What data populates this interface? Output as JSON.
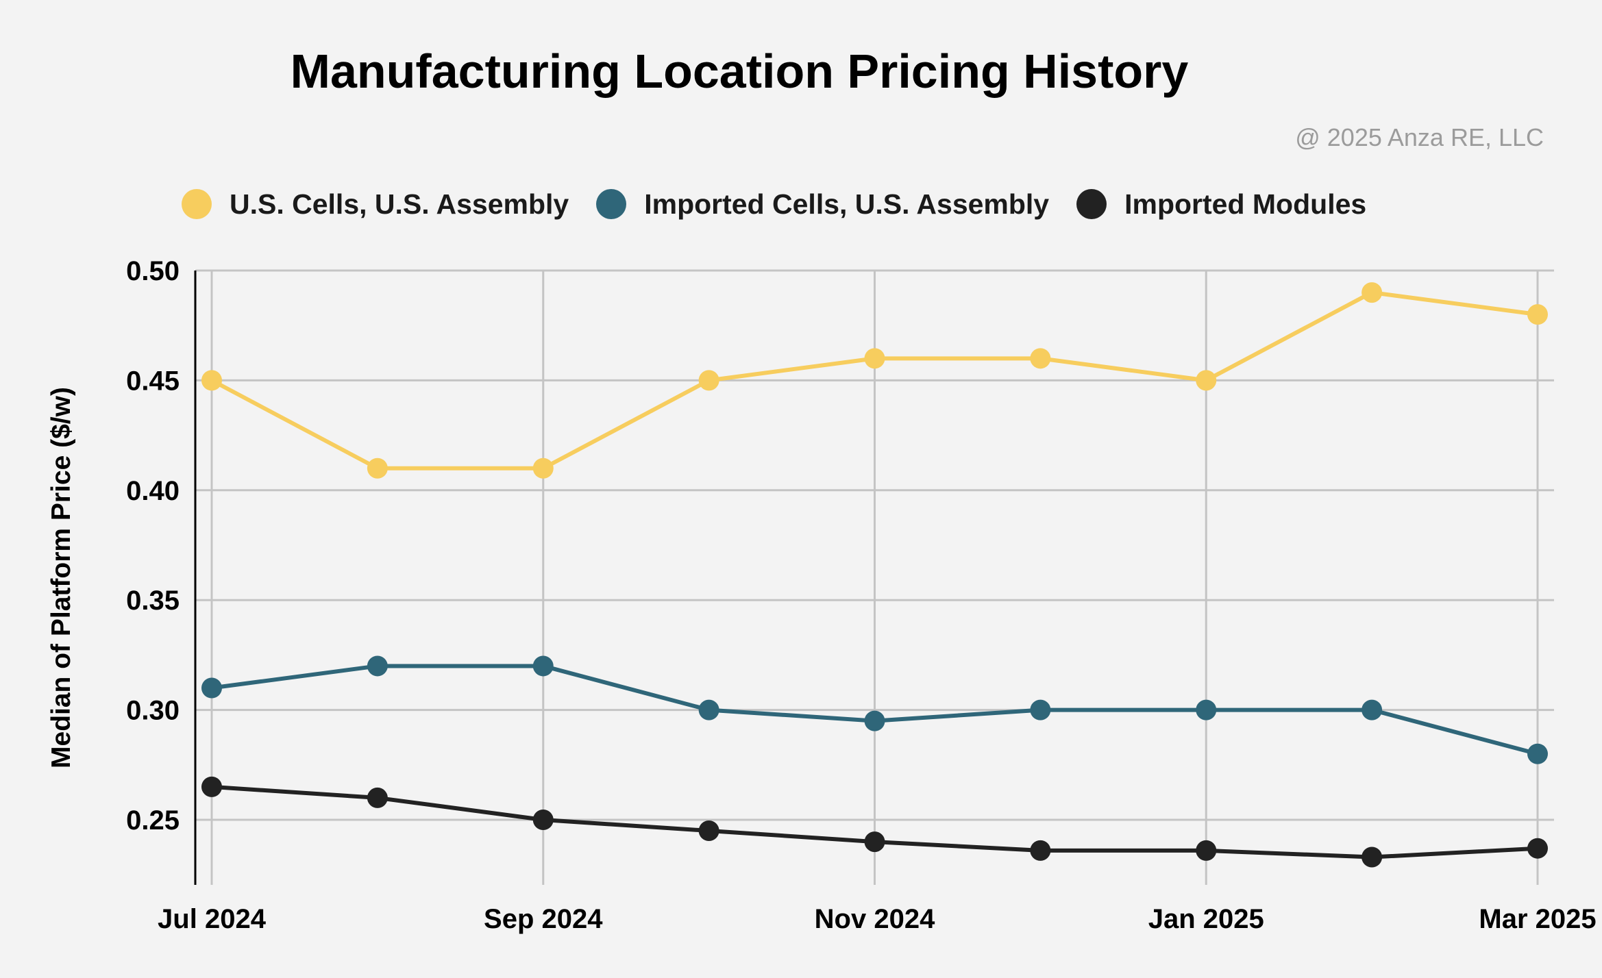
{
  "chart_data": {
    "type": "line",
    "title": "Manufacturing Location Pricing History",
    "copyright": "@ 2025 Anza RE, LLC",
    "xlabel": "",
    "ylabel": "Median of Platform Price ($/w)",
    "x": [
      "Jul 2024",
      "Aug 2024",
      "Sep 2024",
      "Oct 2024",
      "Nov 2024",
      "Dec 2024",
      "Jan 2025",
      "Feb 2025",
      "Mar 2025"
    ],
    "x_tick_labels": [
      "Jul 2024",
      "Sep 2024",
      "Nov 2024",
      "Jan 2025",
      "Mar 2025"
    ],
    "y_ticks": [
      "0.25",
      "0.30",
      "0.35",
      "0.40",
      "0.45",
      "0.50"
    ],
    "ylim": [
      0.22,
      0.5
    ],
    "grid": true,
    "legend_position": "top-left",
    "series": [
      {
        "name": "U.S. Cells, U.S. Assembly",
        "color": "#f7cd5e",
        "values": [
          0.45,
          0.41,
          0.41,
          0.45,
          0.46,
          0.46,
          0.45,
          0.49,
          0.48
        ]
      },
      {
        "name": "Imported Cells, U.S. Assembly",
        "color": "#2f6679",
        "values": [
          0.31,
          0.32,
          0.32,
          0.3,
          0.295,
          0.3,
          0.3,
          0.3,
          0.28
        ]
      },
      {
        "name": "Imported Modules",
        "color": "#222222",
        "values": [
          0.265,
          0.26,
          0.25,
          0.245,
          0.24,
          0.236,
          0.236,
          0.233,
          0.237
        ]
      }
    ]
  }
}
